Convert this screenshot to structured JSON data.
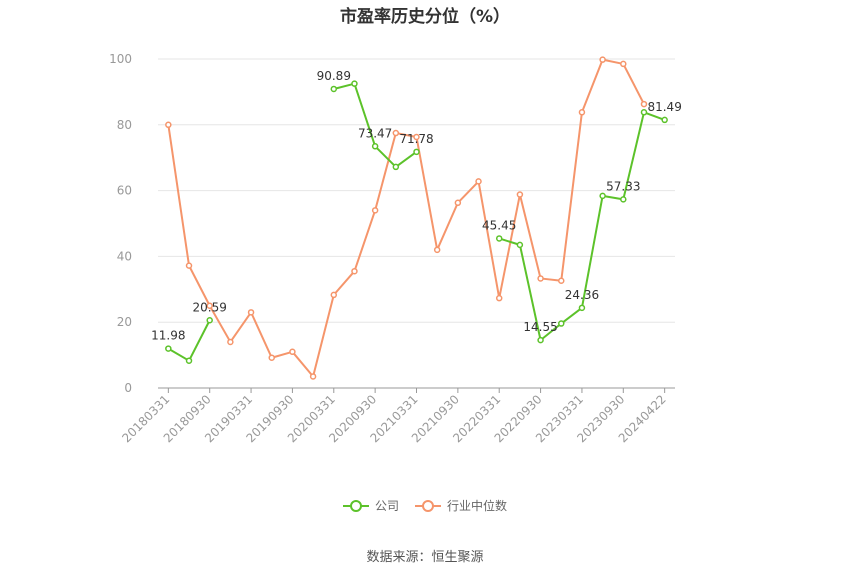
{
  "chart_data": {
    "type": "line",
    "title": "市盈率历史分位（%）",
    "ylim": [
      0,
      100
    ],
    "yticks": [
      0,
      20,
      40,
      60,
      80,
      100
    ],
    "grid": true,
    "legend_position": "bottom",
    "x": [
      "20180331",
      "20180630",
      "20180930",
      "20181231",
      "20190331",
      "20190630",
      "20190930",
      "20191231",
      "20200331",
      "20200630",
      "20200930",
      "20201231",
      "20210331",
      "20210630",
      "20210930",
      "20211231",
      "20220331",
      "20220630",
      "20220930",
      "20221231",
      "20230331",
      "20230630",
      "20230930",
      "20231231",
      "20240422"
    ],
    "xtick_labels": [
      "20180331",
      "20180930",
      "20190331",
      "20190930",
      "20200331",
      "20200930",
      "20210331",
      "20210930",
      "20220331",
      "20220930",
      "20230331",
      "20230930",
      "20240422"
    ],
    "series": [
      {
        "name": "公司",
        "color": "#5cc22a",
        "values": [
          11.98,
          8.3,
          20.59,
          null,
          null,
          null,
          null,
          null,
          90.89,
          92.5,
          73.47,
          67.2,
          71.78,
          null,
          null,
          null,
          45.45,
          43.5,
          14.55,
          19.6,
          24.36,
          58.4,
          57.33,
          83.8,
          81.49
        ],
        "labels": {
          "0": "11.98",
          "2": "20.59",
          "8": "90.89",
          "10": "73.47",
          "12": "71.78",
          "16": "45.45",
          "18": "14.55",
          "20": "24.36",
          "22": "57.33",
          "24": "81.49"
        }
      },
      {
        "name": "行业中位数",
        "color": "#f5956b",
        "values": [
          80.0,
          37.2,
          25.0,
          14.0,
          23.0,
          9.2,
          11.0,
          3.5,
          28.3,
          35.5,
          54.0,
          77.5,
          76.3,
          42.0,
          56.3,
          62.8,
          27.3,
          58.8,
          33.3,
          32.6,
          83.8,
          99.8,
          98.5,
          86.3,
          null
        ]
      }
    ]
  },
  "legend": [
    {
      "label": "公司",
      "color": "#5cc22a"
    },
    {
      "label": "行业中位数",
      "color": "#f5956b"
    }
  ],
  "source": "数据来源：恒生聚源"
}
